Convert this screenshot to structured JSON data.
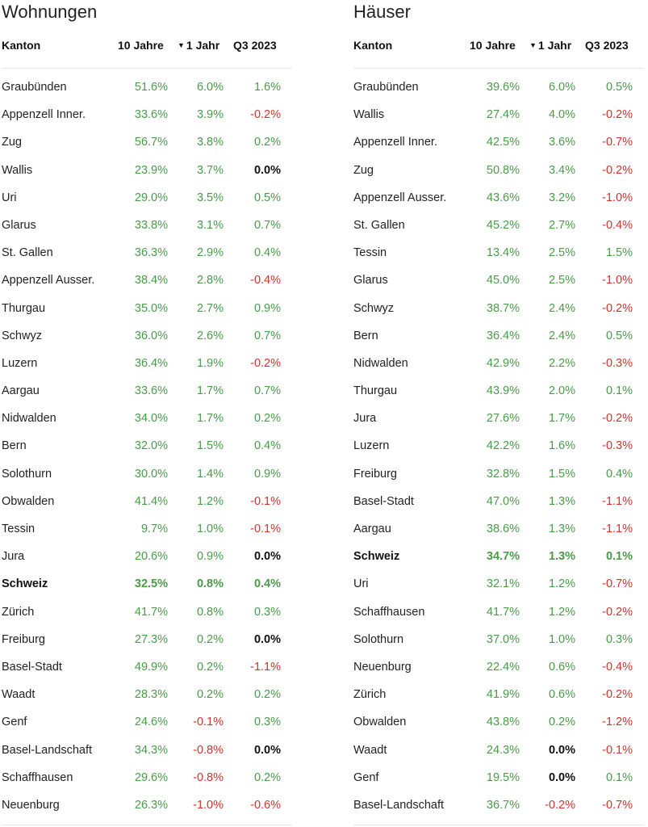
{
  "left": {
    "title": "Wohnungen",
    "headers": {
      "kanton": "Kanton",
      "ten_years": "10 Jahre",
      "one_year": "1 Jahr",
      "q3": "Q3 2023"
    },
    "rows": [
      {
        "name": "Graubünden",
        "a": "51.6%",
        "b": "6.0%",
        "c": "1.6%"
      },
      {
        "name": "Appenzell Inner.",
        "a": "33.6%",
        "b": "3.9%",
        "c": "-0.2%"
      },
      {
        "name": "Zug",
        "a": "56.7%",
        "b": "3.8%",
        "c": "0.2%"
      },
      {
        "name": "Wallis",
        "a": "23.9%",
        "b": "3.7%",
        "c": "0.0%"
      },
      {
        "name": "Uri",
        "a": "29.0%",
        "b": "3.5%",
        "c": "0.5%"
      },
      {
        "name": "Glarus",
        "a": "33.8%",
        "b": "3.1%",
        "c": "0.7%"
      },
      {
        "name": "St. Gallen",
        "a": "36.3%",
        "b": "2.9%",
        "c": "0.4%"
      },
      {
        "name": "Appenzell Ausser.",
        "a": "38.4%",
        "b": "2.8%",
        "c": "-0.4%"
      },
      {
        "name": "Thurgau",
        "a": "35.0%",
        "b": "2.7%",
        "c": "0.9%"
      },
      {
        "name": "Schwyz",
        "a": "36.0%",
        "b": "2.6%",
        "c": "0.7%"
      },
      {
        "name": "Luzern",
        "a": "36.4%",
        "b": "1.9%",
        "c": "-0.2%"
      },
      {
        "name": "Aargau",
        "a": "33.6%",
        "b": "1.7%",
        "c": "0.7%"
      },
      {
        "name": "Nidwalden",
        "a": "34.0%",
        "b": "1.7%",
        "c": "0.2%"
      },
      {
        "name": "Bern",
        "a": "32.0%",
        "b": "1.5%",
        "c": "0.4%"
      },
      {
        "name": "Solothurn",
        "a": "30.0%",
        "b": "1.4%",
        "c": "0.9%"
      },
      {
        "name": "Obwalden",
        "a": "41.4%",
        "b": "1.2%",
        "c": "-0.1%"
      },
      {
        "name": "Tessin",
        "a": "9.7%",
        "b": "1.0%",
        "c": "-0.1%"
      },
      {
        "name": "Jura",
        "a": "20.6%",
        "b": "0.9%",
        "c": "0.0%"
      },
      {
        "name": "Schweiz",
        "a": "32.5%",
        "b": "0.8%",
        "c": "0.4%",
        "bold": true
      },
      {
        "name": "Zürich",
        "a": "41.7%",
        "b": "0.8%",
        "c": "0.3%"
      },
      {
        "name": "Freiburg",
        "a": "27.3%",
        "b": "0.2%",
        "c": "0.0%"
      },
      {
        "name": "Basel-Stadt",
        "a": "49.9%",
        "b": "0.2%",
        "c": "-1.1%"
      },
      {
        "name": "Waadt",
        "a": "28.3%",
        "b": "0.2%",
        "c": "0.2%"
      },
      {
        "name": "Genf",
        "a": "24.6%",
        "b": "-0.1%",
        "c": "0.3%"
      },
      {
        "name": "Basel-Landschaft",
        "a": "34.3%",
        "b": "-0.8%",
        "c": "0.0%"
      },
      {
        "name": "Schaffhausen",
        "a": "29.6%",
        "b": "-0.8%",
        "c": "0.2%"
      },
      {
        "name": "Neuenburg",
        "a": "26.3%",
        "b": "-1.0%",
        "c": "-0.6%"
      }
    ]
  },
  "right": {
    "title": "Häuser",
    "headers": {
      "kanton": "Kanton",
      "ten_years": "10 Jahre",
      "one_year": "1 Jahr",
      "q3": "Q3 2023"
    },
    "rows": [
      {
        "name": "Graubünden",
        "a": "39.6%",
        "b": "6.0%",
        "c": "0.5%"
      },
      {
        "name": "Wallis",
        "a": "27.4%",
        "b": "4.0%",
        "c": "-0.2%"
      },
      {
        "name": "Appenzell Inner.",
        "a": "42.5%",
        "b": "3.6%",
        "c": "-0.7%"
      },
      {
        "name": "Zug",
        "a": "50.8%",
        "b": "3.4%",
        "c": "-0.2%"
      },
      {
        "name": "Appenzell Ausser.",
        "a": "43.6%",
        "b": "3.2%",
        "c": "-1.0%"
      },
      {
        "name": "St. Gallen",
        "a": "45.2%",
        "b": "2.7%",
        "c": "-0.4%"
      },
      {
        "name": "Tessin",
        "a": "13.4%",
        "b": "2.5%",
        "c": "1.5%"
      },
      {
        "name": "Glarus",
        "a": "45.0%",
        "b": "2.5%",
        "c": "-1.0%"
      },
      {
        "name": "Schwyz",
        "a": "38.7%",
        "b": "2.4%",
        "c": "-0.2%"
      },
      {
        "name": "Bern",
        "a": "36.4%",
        "b": "2.4%",
        "c": "0.5%"
      },
      {
        "name": "Nidwalden",
        "a": "42.9%",
        "b": "2.2%",
        "c": "-0.3%"
      },
      {
        "name": "Thurgau",
        "a": "43.9%",
        "b": "2.0%",
        "c": "0.1%"
      },
      {
        "name": "Jura",
        "a": "27.6%",
        "b": "1.7%",
        "c": "-0.2%"
      },
      {
        "name": "Luzern",
        "a": "42.2%",
        "b": "1.6%",
        "c": "-0.3%"
      },
      {
        "name": "Freiburg",
        "a": "32.8%",
        "b": "1.5%",
        "c": "0.4%"
      },
      {
        "name": "Basel-Stadt",
        "a": "47.0%",
        "b": "1.3%",
        "c": "-1.1%"
      },
      {
        "name": "Aargau",
        "a": "38.6%",
        "b": "1.3%",
        "c": "-1.1%"
      },
      {
        "name": "Schweiz",
        "a": "34.7%",
        "b": "1.3%",
        "c": "0.1%",
        "bold": true
      },
      {
        "name": "Uri",
        "a": "32.1%",
        "b": "1.2%",
        "c": "-0.7%"
      },
      {
        "name": "Schaffhausen",
        "a": "41.7%",
        "b": "1.2%",
        "c": "-0.2%"
      },
      {
        "name": "Solothurn",
        "a": "37.0%",
        "b": "1.0%",
        "c": "0.3%"
      },
      {
        "name": "Neuenburg",
        "a": "22.4%",
        "b": "0.6%",
        "c": "-0.4%"
      },
      {
        "name": "Zürich",
        "a": "41.9%",
        "b": "0.6%",
        "c": "-0.2%"
      },
      {
        "name": "Obwalden",
        "a": "43.8%",
        "b": "0.2%",
        "c": "-1.2%"
      },
      {
        "name": "Waadt",
        "a": "24.3%",
        "b": "0.0%",
        "c": "-0.1%"
      },
      {
        "name": "Genf",
        "a": "19.5%",
        "b": "0.0%",
        "c": "0.1%"
      },
      {
        "name": "Basel-Landschaft",
        "a": "36.7%",
        "b": "-0.2%",
        "c": "-0.7%"
      }
    ]
  },
  "colors": {
    "positive": "#4a9a4a",
    "negative": "#d0342c",
    "zero": "#111111"
  },
  "sort_icon": "triangle-down-icon"
}
